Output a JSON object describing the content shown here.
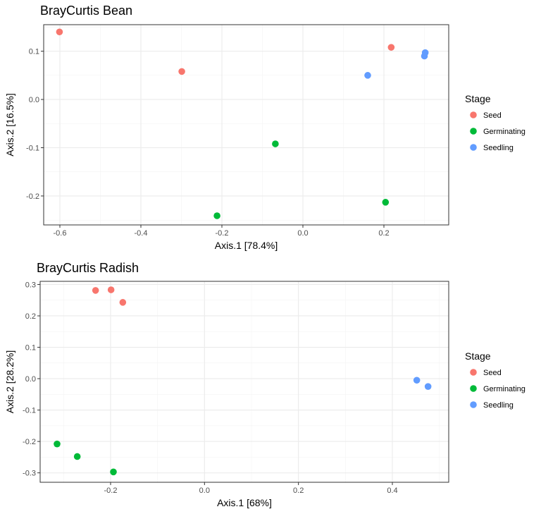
{
  "colors": {
    "Seed": "#F8766D",
    "Germinating": "#00BA38",
    "Seedling": "#619CFF",
    "grid": "#ebebeb",
    "panel_border": "#333333"
  },
  "chart_data": [
    {
      "type": "scatter",
      "title": "BrayCurtis Bean",
      "xlabel": "Axis.1   [78.4%]",
      "ylabel": "Axis.2   [16.5%]",
      "xlim": [
        -0.64,
        0.36
      ],
      "ylim": [
        -0.26,
        0.155
      ],
      "xticks": [
        -0.6,
        -0.4,
        -0.2,
        0.0,
        0.2
      ],
      "xtick_labels": [
        "-0.6",
        "-0.4",
        "-0.2",
        "0.0",
        "0.2"
      ],
      "yticks": [
        -0.2,
        -0.1,
        0.0,
        0.1
      ],
      "ytick_labels": [
        "-0.2",
        "-0.1",
        "0.0",
        "0.1"
      ],
      "grid": true,
      "legend_title": "Stage",
      "legend_position": "right",
      "series": [
        {
          "name": "Seed",
          "points": [
            [
              -0.601,
              0.14
            ],
            [
              -0.299,
              0.058
            ],
            [
              0.218,
              0.108
            ]
          ]
        },
        {
          "name": "Germinating",
          "points": [
            [
              -0.068,
              -0.092
            ],
            [
              -0.212,
              -0.241
            ],
            [
              0.204,
              -0.213
            ]
          ]
        },
        {
          "name": "Seedling",
          "points": [
            [
              0.16,
              0.05
            ],
            [
              0.302,
              0.097
            ],
            [
              0.3,
              0.09
            ]
          ]
        }
      ]
    },
    {
      "type": "scatter",
      "title": "BrayCurtis Radish",
      "xlabel": "Axis.1   [68%]",
      "ylabel": "Axis.2   [28.2%]",
      "xlim": [
        -0.35,
        0.52
      ],
      "ylim": [
        -0.33,
        0.31
      ],
      "xticks": [
        -0.2,
        0.0,
        0.2,
        0.4
      ],
      "xtick_labels": [
        "-0.2",
        "0.0",
        "0.2",
        "0.4"
      ],
      "yticks": [
        -0.3,
        -0.2,
        -0.1,
        0.0,
        0.1,
        0.2,
        0.3
      ],
      "ytick_labels": [
        "-0.3",
        "-0.2",
        "-0.1",
        "0.0",
        "0.1",
        "0.2",
        "0.3"
      ],
      "grid": true,
      "legend_title": "Stage",
      "legend_position": "right",
      "series": [
        {
          "name": "Seed",
          "points": [
            [
              -0.232,
              0.281
            ],
            [
              -0.199,
              0.283
            ],
            [
              -0.174,
              0.243
            ]
          ]
        },
        {
          "name": "Germinating",
          "points": [
            [
              -0.314,
              -0.208
            ],
            [
              -0.271,
              -0.248
            ],
            [
              -0.194,
              -0.297
            ]
          ]
        },
        {
          "name": "Seedling",
          "points": [
            [
              0.452,
              -0.005
            ],
            [
              0.476,
              -0.025
            ]
          ]
        }
      ]
    }
  ]
}
